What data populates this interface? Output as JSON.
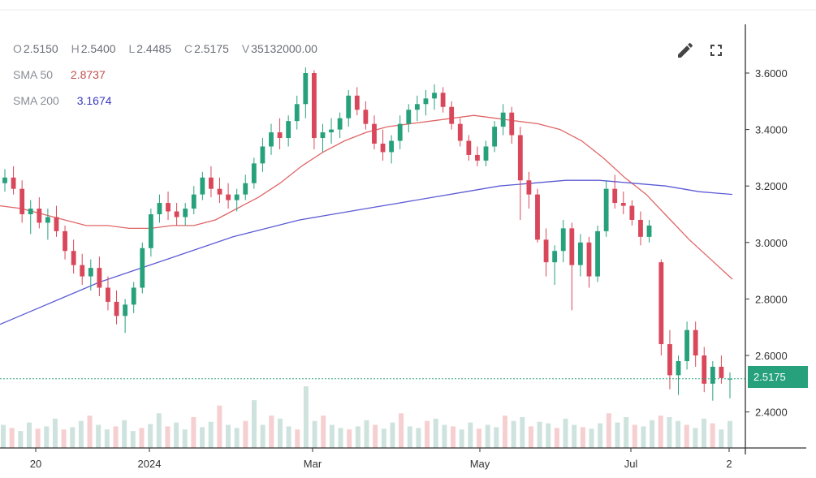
{
  "legend": {
    "open_label": "O",
    "open": "2.5150",
    "high_label": "H",
    "high": "2.5400",
    "low_label": "L",
    "low": "2.4485",
    "close_label": "C",
    "close": "2.5175",
    "volume_label": "V",
    "volume": "35132000.00",
    "sma50_label": "SMA 50",
    "sma50": "2.8737",
    "sma200_label": "SMA 200",
    "sma200": "3.1674"
  },
  "toolbar": {
    "edit_icon": "pencil-icon",
    "fullscreen_icon": "expand-icon"
  },
  "last_price_label": "2.5175",
  "colors": {
    "up": "#26a17b",
    "down": "#d9475a",
    "sma50": "#e06666",
    "sma200": "#5b5bd6",
    "price_line": "#26a17b",
    "volume_up": "#cfe3de",
    "volume_down": "#f6cfd1"
  },
  "chart_data": {
    "type": "candlestick",
    "y_axis_ticks": [
      "3.6000",
      "3.4000",
      "3.2000",
      "3.0000",
      "2.8000",
      "2.6000",
      "2.4000"
    ],
    "x_axis_ticks": [
      "20",
      "2024",
      "Mar",
      "May",
      "Jul",
      "2"
    ],
    "ylim": [
      2.3,
      3.78
    ],
    "last_price": 2.5175,
    "candles": [
      [
        3.21,
        3.26,
        3.18,
        3.23
      ],
      [
        3.23,
        3.27,
        3.17,
        3.19
      ],
      [
        3.19,
        3.22,
        3.07,
        3.1
      ],
      [
        3.1,
        3.15,
        3.03,
        3.12
      ],
      [
        3.12,
        3.16,
        3.05,
        3.07
      ],
      [
        3.07,
        3.12,
        3.01,
        3.09
      ],
      [
        3.09,
        3.13,
        3.02,
        3.04
      ],
      [
        3.04,
        3.06,
        2.94,
        2.97
      ],
      [
        2.97,
        3.01,
        2.89,
        2.92
      ],
      [
        2.92,
        2.96,
        2.85,
        2.88
      ],
      [
        2.88,
        2.94,
        2.83,
        2.91
      ],
      [
        2.91,
        2.95,
        2.81,
        2.84
      ],
      [
        2.84,
        2.88,
        2.76,
        2.79
      ],
      [
        2.79,
        2.83,
        2.71,
        2.74
      ],
      [
        2.74,
        2.8,
        2.68,
        2.78
      ],
      [
        2.78,
        2.86,
        2.75,
        2.84
      ],
      [
        2.84,
        3.0,
        2.82,
        2.98
      ],
      [
        2.98,
        3.12,
        2.95,
        3.1
      ],
      [
        3.1,
        3.17,
        3.07,
        3.14
      ],
      [
        3.14,
        3.18,
        3.08,
        3.11
      ],
      [
        3.11,
        3.14,
        3.06,
        3.09
      ],
      [
        3.09,
        3.14,
        3.06,
        3.12
      ],
      [
        3.12,
        3.2,
        3.1,
        3.17
      ],
      [
        3.17,
        3.25,
        3.15,
        3.23
      ],
      [
        3.23,
        3.27,
        3.16,
        3.19
      ],
      [
        3.19,
        3.23,
        3.14,
        3.17
      ],
      [
        3.17,
        3.21,
        3.12,
        3.15
      ],
      [
        3.15,
        3.19,
        3.11,
        3.17
      ],
      [
        3.17,
        3.24,
        3.15,
        3.21
      ],
      [
        3.21,
        3.3,
        3.19,
        3.28
      ],
      [
        3.28,
        3.37,
        3.25,
        3.34
      ],
      [
        3.34,
        3.42,
        3.31,
        3.39
      ],
      [
        3.39,
        3.44,
        3.33,
        3.37
      ],
      [
        3.37,
        3.45,
        3.34,
        3.43
      ],
      [
        3.43,
        3.52,
        3.4,
        3.49
      ],
      [
        3.49,
        3.62,
        3.44,
        3.6
      ],
      [
        3.6,
        3.61,
        3.33,
        3.37
      ],
      [
        3.37,
        3.42,
        3.32,
        3.39
      ],
      [
        3.39,
        3.44,
        3.35,
        3.4
      ],
      [
        3.4,
        3.46,
        3.37,
        3.44
      ],
      [
        3.44,
        3.54,
        3.41,
        3.52
      ],
      [
        3.52,
        3.55,
        3.45,
        3.47
      ],
      [
        3.47,
        3.5,
        3.4,
        3.42
      ],
      [
        3.42,
        3.45,
        3.33,
        3.35
      ],
      [
        3.35,
        3.4,
        3.29,
        3.32
      ],
      [
        3.32,
        3.38,
        3.28,
        3.36
      ],
      [
        3.36,
        3.45,
        3.33,
        3.42
      ],
      [
        3.42,
        3.49,
        3.39,
        3.47
      ],
      [
        3.47,
        3.52,
        3.43,
        3.49
      ],
      [
        3.49,
        3.54,
        3.45,
        3.51
      ],
      [
        3.51,
        3.56,
        3.47,
        3.53
      ],
      [
        3.53,
        3.55,
        3.46,
        3.48
      ],
      [
        3.48,
        3.5,
        3.4,
        3.42
      ],
      [
        3.42,
        3.44,
        3.34,
        3.36
      ],
      [
        3.36,
        3.38,
        3.29,
        3.31
      ],
      [
        3.31,
        3.34,
        3.27,
        3.29
      ],
      [
        3.29,
        3.36,
        3.27,
        3.34
      ],
      [
        3.34,
        3.43,
        3.32,
        3.41
      ],
      [
        3.41,
        3.49,
        3.38,
        3.46
      ],
      [
        3.46,
        3.48,
        3.35,
        3.38
      ],
      [
        3.38,
        3.41,
        3.08,
        3.22
      ],
      [
        3.22,
        3.25,
        3.12,
        3.17
      ],
      [
        3.17,
        3.19,
        3.0,
        3.01
      ],
      [
        3.01,
        3.05,
        2.88,
        2.93
      ],
      [
        2.93,
        2.99,
        2.85,
        2.97
      ],
      [
        2.97,
        3.08,
        2.93,
        3.05
      ],
      [
        3.05,
        3.07,
        2.76,
        2.92
      ],
      [
        2.92,
        3.03,
        2.88,
        3.0
      ],
      [
        3.0,
        3.02,
        2.84,
        2.88
      ],
      [
        2.88,
        3.06,
        2.86,
        3.04
      ],
      [
        3.04,
        3.22,
        3.02,
        3.19
      ],
      [
        3.19,
        3.24,
        3.12,
        3.14
      ],
      [
        3.14,
        3.18,
        3.1,
        3.13
      ],
      [
        3.13,
        3.15,
        3.06,
        3.08
      ],
      [
        3.08,
        3.11,
        2.99,
        3.02
      ],
      [
        3.02,
        3.08,
        3.0,
        3.06
      ],
      [
        2.93,
        2.94,
        2.6,
        2.64
      ],
      [
        2.64,
        2.69,
        2.48,
        2.53
      ],
      [
        2.53,
        2.6,
        2.46,
        2.58
      ],
      [
        2.58,
        2.72,
        2.55,
        2.69
      ],
      [
        2.69,
        2.72,
        2.56,
        2.6
      ],
      [
        2.6,
        2.63,
        2.47,
        2.5
      ],
      [
        2.5,
        2.58,
        2.44,
        2.56
      ],
      [
        2.56,
        2.6,
        2.5,
        2.52
      ],
      [
        2.515,
        2.54,
        2.4485,
        2.5175
      ]
    ],
    "sma50": [
      3.13,
      3.12,
      3.1,
      3.08,
      3.06,
      3.06,
      3.05,
      3.05,
      3.06,
      3.06,
      3.08,
      3.12,
      3.16,
      3.21,
      3.27,
      3.32,
      3.36,
      3.39,
      3.41,
      3.42,
      3.43,
      3.44,
      3.45,
      3.44,
      3.43,
      3.42,
      3.4,
      3.36,
      3.3,
      3.23,
      3.17,
      3.09,
      3.01,
      2.94,
      2.87
    ],
    "sma200": [
      2.71,
      2.76,
      2.81,
      2.86,
      2.9,
      2.94,
      2.98,
      3.02,
      3.05,
      3.08,
      3.1,
      3.12,
      3.14,
      3.16,
      3.18,
      3.2,
      3.21,
      3.22,
      3.22,
      3.21,
      3.2,
      3.18,
      3.17
    ],
    "volumes": [
      30,
      26,
      22,
      33,
      25,
      28,
      38,
      24,
      27,
      35,
      42,
      30,
      24,
      28,
      36,
      22,
      26,
      31,
      45,
      28,
      33,
      24,
      40,
      27,
      34,
      55,
      30,
      26,
      35,
      62,
      30,
      42,
      38,
      28,
      24,
      80,
      35,
      42,
      30,
      26,
      24,
      28,
      36,
      30,
      25,
      33,
      45,
      28,
      26,
      35,
      38,
      30,
      28,
      24,
      33,
      25,
      30,
      27,
      42,
      35,
      40,
      28,
      34,
      32,
      26,
      38,
      30,
      27,
      25,
      32,
      45,
      33,
      40,
      30,
      28,
      36,
      42,
      40,
      35,
      30,
      26,
      38,
      32,
      24,
      35
    ]
  }
}
